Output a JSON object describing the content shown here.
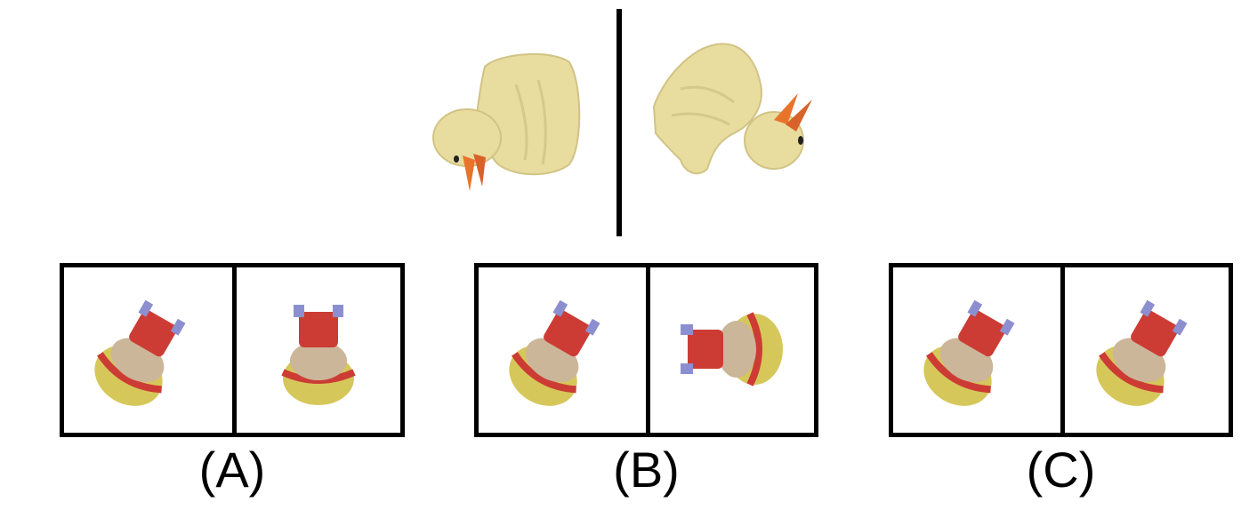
{
  "reference": {
    "left_object": "rubber-duck",
    "right_object": "rubber-duck",
    "colors": {
      "duck_body": "#e8dc9f",
      "duck_beak": "#e8742c"
    }
  },
  "options": [
    {
      "label": "(A)",
      "left_view": "robot-figure",
      "right_view": "robot-figure"
    },
    {
      "label": "(B)",
      "left_view": "robot-figure",
      "right_view": "robot-figure"
    },
    {
      "label": "(C)",
      "left_view": "robot-figure",
      "right_view": "robot-figure"
    }
  ],
  "colors": {
    "frame": "#000000",
    "helmet": "#d6c75a",
    "band": "#cc3c34",
    "face": "#cbb69a",
    "clamp": "#8c8fcf"
  }
}
